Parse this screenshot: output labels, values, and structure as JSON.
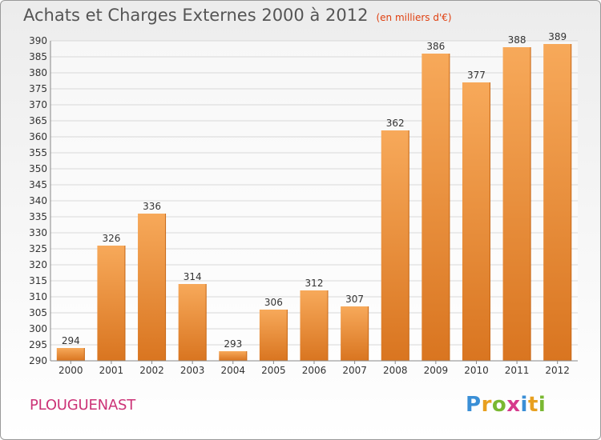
{
  "header": {
    "title": "Achats et Charges Externes 2000 à 2012",
    "subtitle": "(en milliers d'€)"
  },
  "footer": {
    "commune": "PLOUGUENAST",
    "logo_letters": [
      "P",
      "r",
      "o",
      "x",
      "i",
      "t",
      "i"
    ],
    "logo_colors": [
      "#3a8fd6",
      "#e8a020",
      "#7ab832",
      "#d63a8c",
      "#3a8fd6",
      "#e8a020",
      "#7ab832"
    ]
  },
  "colors": {
    "bar_top": "#f7a95a",
    "bar_bottom": "#d97520",
    "grid": "#d8d8d8",
    "axis_text": "#333333"
  },
  "chart_data": {
    "type": "bar",
    "title": "Achats et Charges Externes 2000 à 2012",
    "unit": "(en milliers d'€)",
    "categories": [
      "2000",
      "2001",
      "2002",
      "2003",
      "2004",
      "2005",
      "2006",
      "2007",
      "2008",
      "2009",
      "2010",
      "2011",
      "2012"
    ],
    "values": [
      294,
      326,
      336,
      314,
      293,
      306,
      312,
      307,
      362,
      386,
      377,
      388,
      389
    ],
    "ylim": [
      290,
      390
    ],
    "ytick_step": 5,
    "grid": true
  }
}
